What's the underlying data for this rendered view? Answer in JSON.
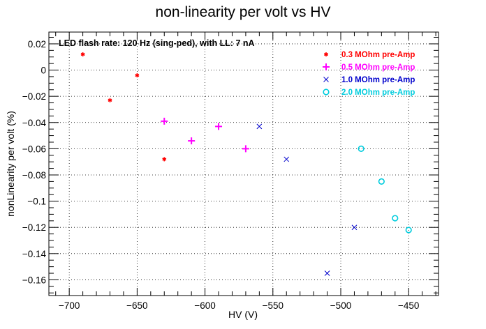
{
  "chart_data": {
    "type": "scatter",
    "title": "non-linearity per volt vs HV",
    "xlabel": "HV (V)",
    "ylabel": "nonLinearity per volt (%)",
    "annotation": "LED flash rate: 120 Hz  (sing-ped), with LL: 7 nA",
    "xlim": [
      -715,
      -428
    ],
    "ylim": [
      -0.172,
      0.029
    ],
    "x_ticks": [
      -700,
      -650,
      -600,
      -550,
      -500,
      -450
    ],
    "x_tick_labels": [
      "−700",
      "−650",
      "−600",
      "−550",
      "−500",
      "−450"
    ],
    "y_ticks": [
      0.02,
      0,
      -0.02,
      -0.04,
      -0.06,
      -0.08,
      -0.1,
      -0.12,
      -0.14,
      -0.16
    ],
    "y_tick_labels": [
      "0.02",
      "0",
      "−0.02",
      "−0.04",
      "−0.06",
      "−0.08",
      "−0.1",
      "−0.12",
      "−0.14",
      "−0.16"
    ],
    "grid": true,
    "legend_position": "top-right",
    "series": [
      {
        "name": "0.3 MOhm pre-Amp",
        "color": "#ff0000",
        "marker": "star",
        "points": [
          [
            -690,
            0.012
          ],
          [
            -670,
            -0.023
          ],
          [
            -650,
            -0.004
          ],
          [
            -630,
            -0.068
          ]
        ]
      },
      {
        "name": "0.5 MOhm pre-Amp",
        "color": "#ff00ff",
        "marker": "plus",
        "points": [
          [
            -630,
            -0.039
          ],
          [
            -610,
            -0.054
          ],
          [
            -590,
            -0.043
          ],
          [
            -570,
            -0.06
          ]
        ]
      },
      {
        "name": "1.0 MOhm pre-Amp",
        "color": "#0000cc",
        "marker": "x",
        "points": [
          [
            -560,
            -0.043
          ],
          [
            -540,
            -0.068
          ],
          [
            -510,
            -0.155
          ],
          [
            -490,
            -0.12
          ]
        ]
      },
      {
        "name": "2.0 MOhm pre-Amp",
        "color": "#00ccdd",
        "marker": "circle",
        "points": [
          [
            -485,
            -0.06
          ],
          [
            -470,
            -0.085
          ],
          [
            -460,
            -0.113
          ],
          [
            -450,
            -0.122
          ]
        ]
      }
    ]
  }
}
